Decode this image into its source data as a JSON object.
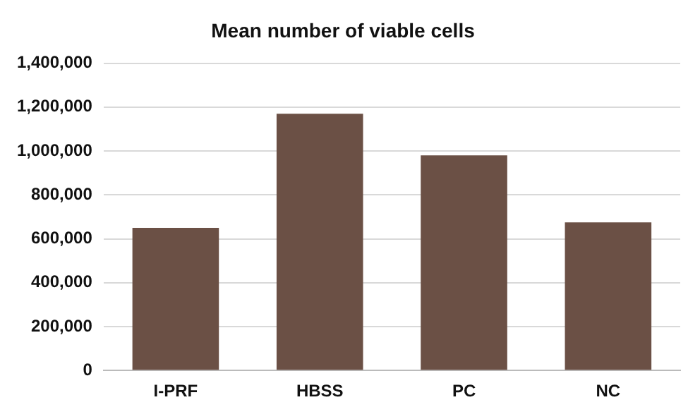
{
  "chart_data": {
    "type": "bar",
    "title": "Mean number of viable cells",
    "categories": [
      "I-PRF",
      "HBSS",
      "PC",
      "NC"
    ],
    "values": [
      650000,
      1170000,
      980000,
      675000
    ],
    "color": "#6b5045",
    "ylim": [
      0,
      1400000
    ],
    "yticks": [
      0,
      {
        "value": 200000,
        "label": "200,000"
      },
      {
        "value": 400000,
        "label": "400,000"
      },
      {
        "value": 600000,
        "label": "600,000"
      },
      {
        "value": 800000,
        "label": "800,000"
      },
      {
        "value": 1000000,
        "label": "1,000,000"
      },
      {
        "value": 1200000,
        "label": "1,200,000"
      },
      {
        "value": 1400000,
        "label": "1,400,000"
      }
    ],
    "grid": "y",
    "legend": false
  }
}
